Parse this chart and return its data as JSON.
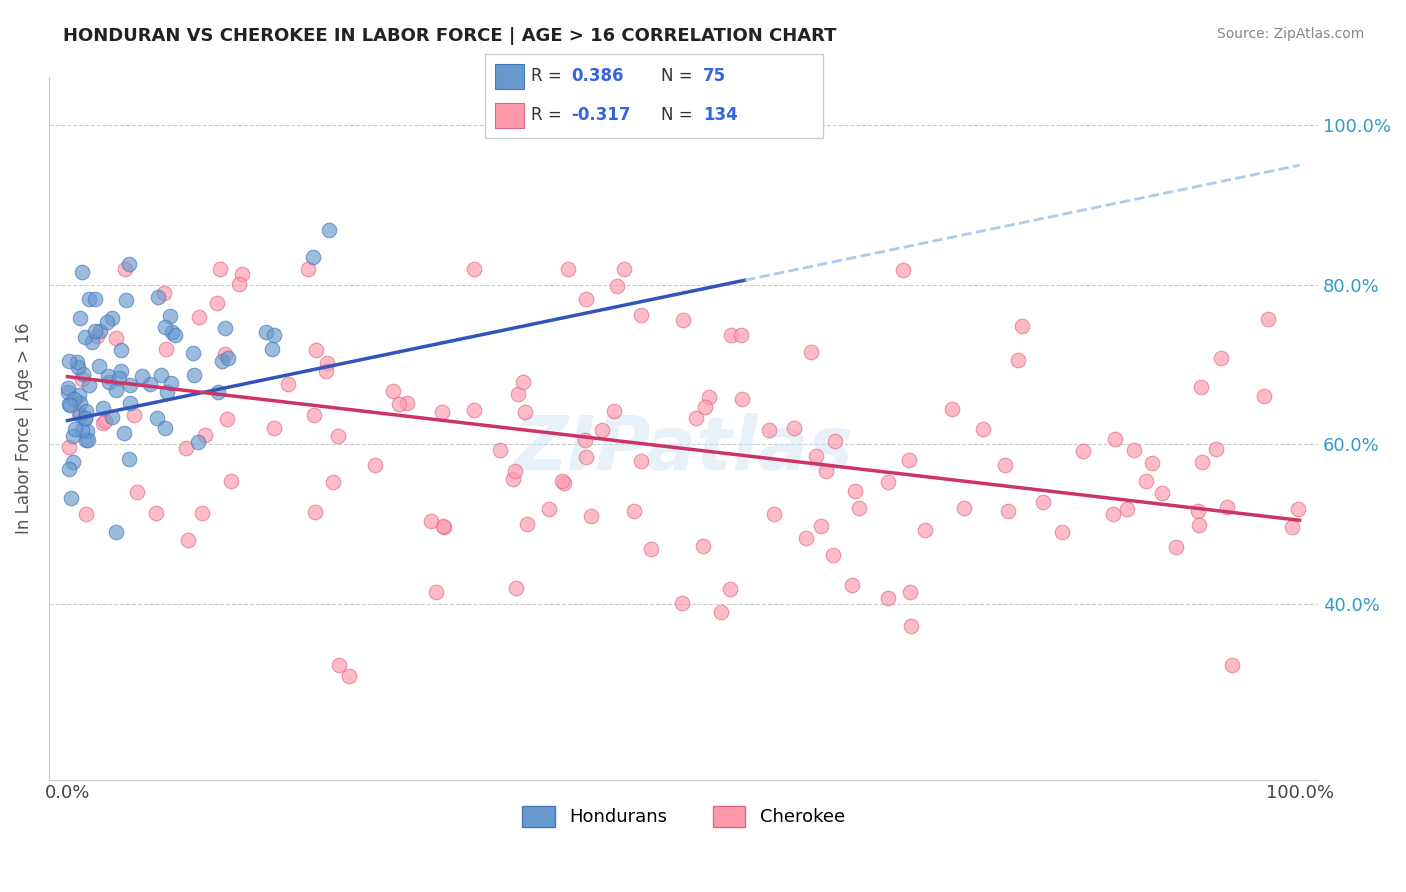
{
  "title": "HONDURAN VS CHEROKEE IN LABOR FORCE | AGE > 16 CORRELATION CHART",
  "source_text": "Source: ZipAtlas.com",
  "ylabel": "In Labor Force | Age > 16",
  "honduran_color": "#6699cc",
  "honduran_edge": "#4477bb",
  "cherokee_color": "#ff99aa",
  "cherokee_edge": "#dd6688",
  "blue_line_color": "#3355bb",
  "pink_line_color": "#cc3366",
  "blue_dash_color": "#aaccee",
  "background_color": "#ffffff",
  "grid_color": "#cccccc",
  "R_blue": 0.386,
  "N_blue": 75,
  "R_pink": -0.317,
  "N_pink": 134,
  "blue_line_x0": 0,
  "blue_line_y0": 63.0,
  "blue_line_x1": 100,
  "blue_line_y1": 95.0,
  "blue_solid_end": 55,
  "pink_line_x0": 0,
  "pink_line_y0": 68.5,
  "pink_line_x1": 100,
  "pink_line_y1": 50.5,
  "ylim_low": 18,
  "ylim_high": 106,
  "yticks": [
    40,
    60,
    80,
    100
  ],
  "ytick_labels": [
    "40.0%",
    "60.0%",
    "80.0%",
    "100.0%"
  ],
  "xticks": [
    0,
    100
  ],
  "xtick_labels": [
    "0.0%",
    "100.0%"
  ],
  "legend_r_color": "#3366dd",
  "legend_label_blue": "Hondurans",
  "legend_label_pink": "Cherokee"
}
